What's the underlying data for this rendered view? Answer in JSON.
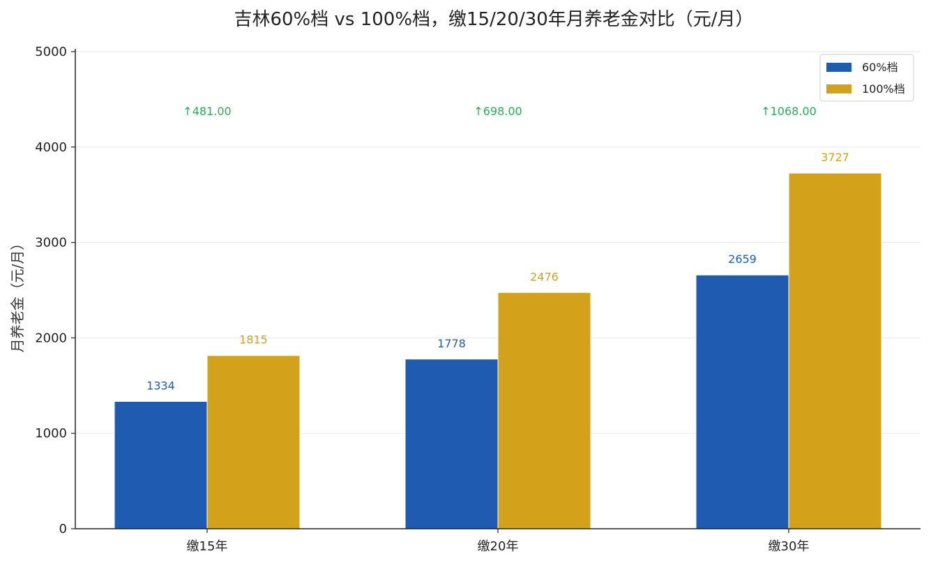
{
  "chart_data": {
    "type": "bar",
    "title": "吉林60%档 vs 100%档，缴15/20/30年月养老金对比（元/月）",
    "xlabel": "",
    "ylabel": "月养老金（元/月）",
    "categories": [
      "缴15年",
      "缴20年",
      "缴30年"
    ],
    "series": [
      {
        "name": "60%档",
        "values": [
          1334,
          1778,
          2659
        ],
        "color": "#1f5bb0"
      },
      {
        "name": "100%档",
        "values": [
          1815,
          2476,
          3727
        ],
        "color": "#d4a21a"
      }
    ],
    "data_labels": {
      "60%档": [
        "1334",
        "1778",
        "2659"
      ],
      "100%档": [
        "1815",
        "2476",
        "3727"
      ]
    },
    "differences": [
      "↑481.00",
      "↑698.00",
      "↑1068.00"
    ],
    "difference_color": "#2aa85a",
    "ylim": [
      0,
      5000
    ],
    "yticks": [
      "0",
      "1000",
      "2000",
      "3000",
      "4000",
      "5000"
    ],
    "grid": true,
    "legend_position": "top-right"
  }
}
